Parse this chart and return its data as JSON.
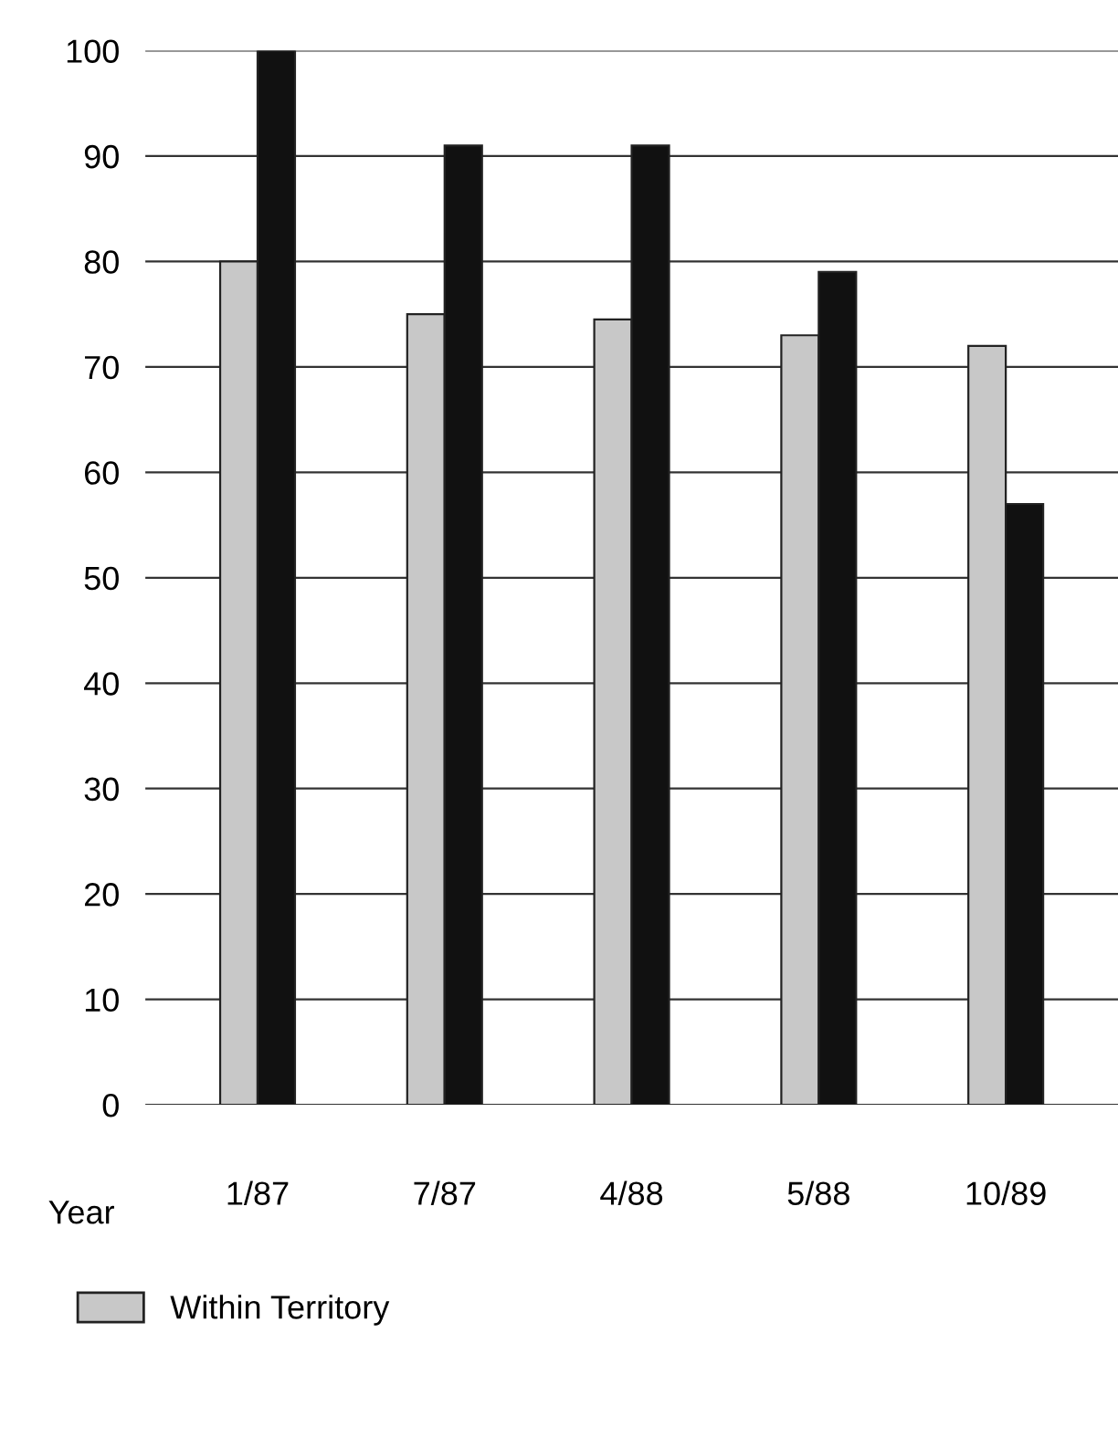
{
  "chart_data": {
    "type": "bar",
    "xlabel": "Year",
    "categories": [
      "1/87",
      "7/87",
      "4/88",
      "5/88",
      "10/89"
    ],
    "series": [
      {
        "name": "Within Territory",
        "color": "#c8c8c8",
        "values": [
          80,
          75,
          74.5,
          73,
          72
        ]
      },
      {
        "color": "#111111",
        "values": [
          100,
          91,
          91,
          79,
          57
        ]
      }
    ],
    "ylim": [
      0,
      100
    ],
    "yticks": [
      0,
      10,
      20,
      30,
      40,
      50,
      60,
      70,
      80,
      90,
      100
    ],
    "grid": "y",
    "legend": "bottom"
  }
}
